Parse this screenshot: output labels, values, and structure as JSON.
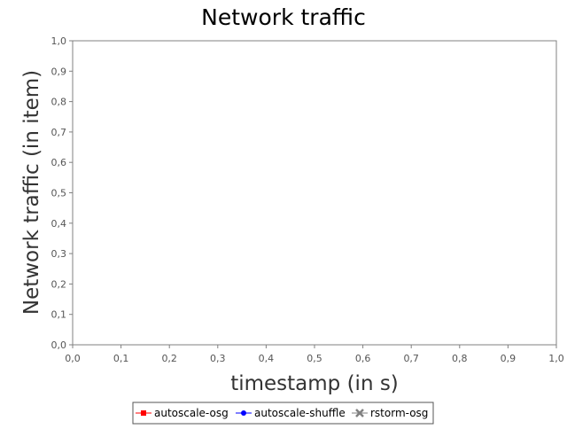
{
  "chart_data": {
    "type": "line",
    "title": "Network traffic",
    "xlabel": "timestamp (in s)",
    "ylabel": "Network traffic (in item)",
    "xlim": [
      0,
      1
    ],
    "ylim": [
      0,
      1
    ],
    "x_ticks": [
      "0,0",
      "0,1",
      "0,2",
      "0,3",
      "0,4",
      "0,5",
      "0,6",
      "0,7",
      "0,8",
      "0,9",
      "1,0"
    ],
    "y_ticks": [
      "0,0",
      "0,1",
      "0,2",
      "0,3",
      "0,4",
      "0,5",
      "0,6",
      "0,7",
      "0,8",
      "0,9",
      "1,0"
    ],
    "grid": false,
    "legend_position": "bottom",
    "series": [
      {
        "name": "autoscale-osg",
        "color": "#ff0000",
        "marker": "square",
        "x": [],
        "y": []
      },
      {
        "name": "autoscale-shuffle",
        "color": "#0000ff",
        "marker": "circle",
        "x": [],
        "y": []
      },
      {
        "name": "rstorm-osg",
        "color": "#808080",
        "marker": "x",
        "x": [],
        "y": []
      }
    ]
  }
}
